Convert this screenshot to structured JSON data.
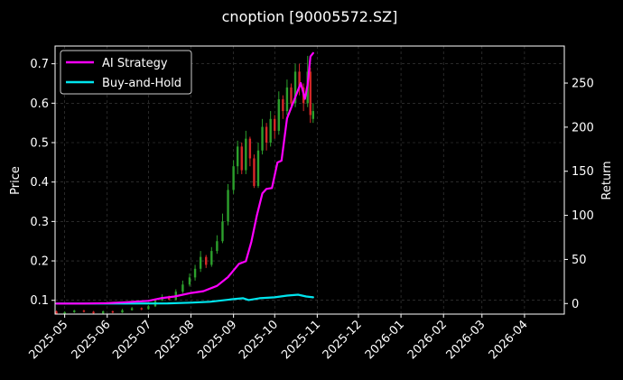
{
  "chart_data": {
    "type": "line",
    "title": "cnoption [90005572.SZ]",
    "xlabel": "",
    "ylabel_left": "Price",
    "ylabel_right": "Return",
    "background": "#000000",
    "grid": true,
    "legend_position": "top-left",
    "x_ticks": [
      "2025-05",
      "2025-06",
      "2025-07",
      "2025-08",
      "2025-09",
      "2025-10",
      "2025-11",
      "2025-12",
      "2026-01",
      "2026-02",
      "2026-03",
      "2026-04"
    ],
    "x_range": [
      "2025-04-24",
      "2026-04-30"
    ],
    "ylim_left": [
      0.065,
      0.745
    ],
    "ylim_right": [
      -12,
      292
    ],
    "yticks_left": [
      "0.1",
      "0.2",
      "0.3",
      "0.4",
      "0.5",
      "0.6",
      "0.7"
    ],
    "yticks_right": [
      "0",
      "50",
      "100",
      "150",
      "200",
      "250"
    ],
    "colors": {
      "up": "#2ca02c",
      "down": "#d62728",
      "ai": "#ff00ff",
      "bh": "#00e5ee",
      "grid": "#444444"
    },
    "series": [
      {
        "name": "AI Strategy",
        "axis": "right",
        "color": "#ff00ff",
        "points": [
          [
            "2025-04-25",
            0
          ],
          [
            "2025-05-15",
            0
          ],
          [
            "2025-06-01",
            0.5
          ],
          [
            "2025-06-15",
            1.5
          ],
          [
            "2025-07-01",
            3
          ],
          [
            "2025-07-10",
            6
          ],
          [
            "2025-07-20",
            8
          ],
          [
            "2025-08-01",
            12
          ],
          [
            "2025-08-10",
            14
          ],
          [
            "2025-08-20",
            20
          ],
          [
            "2025-08-28",
            30
          ],
          [
            "2025-09-05",
            45
          ],
          [
            "2025-09-10",
            48
          ],
          [
            "2025-09-14",
            70
          ],
          [
            "2025-09-18",
            100
          ],
          [
            "2025-09-22",
            125
          ],
          [
            "2025-09-25",
            130
          ],
          [
            "2025-09-29",
            131
          ],
          [
            "2025-10-03",
            160
          ],
          [
            "2025-10-06",
            162
          ],
          [
            "2025-10-10",
            210
          ],
          [
            "2025-10-15",
            230
          ],
          [
            "2025-10-20",
            250
          ],
          [
            "2025-10-23",
            232
          ],
          [
            "2025-10-25",
            248
          ],
          [
            "2025-10-27",
            280
          ],
          [
            "2025-10-29",
            284
          ]
        ]
      },
      {
        "name": "Buy-and-Hold",
        "axis": "right",
        "color": "#00e5ee",
        "points": [
          [
            "2025-04-25",
            0
          ],
          [
            "2025-06-15",
            0
          ],
          [
            "2025-07-15",
            0.2
          ],
          [
            "2025-08-01",
            1
          ],
          [
            "2025-08-15",
            2
          ],
          [
            "2025-09-01",
            5
          ],
          [
            "2025-09-08",
            6
          ],
          [
            "2025-09-12",
            4
          ],
          [
            "2025-09-20",
            6
          ],
          [
            "2025-10-01",
            7
          ],
          [
            "2025-10-10",
            9
          ],
          [
            "2025-10-18",
            10
          ],
          [
            "2025-10-24",
            8
          ],
          [
            "2025-10-29",
            7
          ]
        ]
      }
    ],
    "candles": [
      [
        "2025-04-25",
        0.072,
        0.066,
        0.074,
        0.064
      ],
      [
        "2025-05-01",
        0.066,
        0.07,
        0.072,
        0.064
      ],
      [
        "2025-05-08",
        0.07,
        0.074,
        0.076,
        0.068
      ],
      [
        "2025-05-15",
        0.074,
        0.071,
        0.076,
        0.069
      ],
      [
        "2025-05-22",
        0.071,
        0.067,
        0.073,
        0.066
      ],
      [
        "2025-05-29",
        0.067,
        0.072,
        0.074,
        0.066
      ],
      [
        "2025-06-05",
        0.072,
        0.069,
        0.074,
        0.067
      ],
      [
        "2025-06-12",
        0.069,
        0.075,
        0.078,
        0.068
      ],
      [
        "2025-06-19",
        0.075,
        0.08,
        0.083,
        0.074
      ],
      [
        "2025-06-26",
        0.08,
        0.077,
        0.082,
        0.075
      ],
      [
        "2025-07-01",
        0.078,
        0.085,
        0.088,
        0.076
      ],
      [
        "2025-07-06",
        0.085,
        0.1,
        0.105,
        0.083
      ],
      [
        "2025-07-11",
        0.1,
        0.108,
        0.115,
        0.098
      ],
      [
        "2025-07-16",
        0.108,
        0.102,
        0.112,
        0.1
      ],
      [
        "2025-07-21",
        0.102,
        0.122,
        0.128,
        0.1
      ],
      [
        "2025-07-26",
        0.122,
        0.14,
        0.15,
        0.118
      ],
      [
        "2025-07-31",
        0.14,
        0.158,
        0.168,
        0.135
      ],
      [
        "2025-08-04",
        0.158,
        0.18,
        0.19,
        0.15
      ],
      [
        "2025-08-08",
        0.18,
        0.21,
        0.225,
        0.172
      ],
      [
        "2025-08-12",
        0.21,
        0.19,
        0.215,
        0.182
      ],
      [
        "2025-08-16",
        0.19,
        0.225,
        0.235,
        0.185
      ],
      [
        "2025-08-20",
        0.225,
        0.25,
        0.265,
        0.218
      ],
      [
        "2025-08-24",
        0.25,
        0.3,
        0.32,
        0.245
      ],
      [
        "2025-08-28",
        0.3,
        0.38,
        0.395,
        0.29
      ],
      [
        "2025-09-01",
        0.38,
        0.44,
        0.455,
        0.37
      ],
      [
        "2025-09-04",
        0.44,
        0.49,
        0.505,
        0.42
      ],
      [
        "2025-09-07",
        0.49,
        0.43,
        0.5,
        0.42
      ],
      [
        "2025-09-10",
        0.43,
        0.51,
        0.53,
        0.42
      ],
      [
        "2025-09-13",
        0.51,
        0.46,
        0.515,
        0.44
      ],
      [
        "2025-09-16",
        0.46,
        0.39,
        0.47,
        0.385
      ],
      [
        "2025-09-19",
        0.39,
        0.48,
        0.5,
        0.385
      ],
      [
        "2025-09-22",
        0.48,
        0.54,
        0.56,
        0.47
      ],
      [
        "2025-09-25",
        0.54,
        0.5,
        0.55,
        0.48
      ],
      [
        "2025-09-28",
        0.5,
        0.56,
        0.58,
        0.49
      ],
      [
        "2025-10-01",
        0.56,
        0.53,
        0.57,
        0.51
      ],
      [
        "2025-10-04",
        0.53,
        0.61,
        0.63,
        0.52
      ],
      [
        "2025-10-07",
        0.61,
        0.58,
        0.62,
        0.56
      ],
      [
        "2025-10-10",
        0.58,
        0.64,
        0.66,
        0.57
      ],
      [
        "2025-10-13",
        0.64,
        0.6,
        0.65,
        0.585
      ],
      [
        "2025-10-16",
        0.6,
        0.68,
        0.7,
        0.59
      ],
      [
        "2025-10-19",
        0.68,
        0.64,
        0.7,
        0.62
      ],
      [
        "2025-10-22",
        0.64,
        0.6,
        0.65,
        0.58
      ],
      [
        "2025-10-25",
        0.6,
        0.68,
        0.72,
        0.59
      ],
      [
        "2025-10-27",
        0.68,
        0.57,
        0.69,
        0.55
      ],
      [
        "2025-10-29",
        0.56,
        0.58,
        0.6,
        0.55
      ]
    ]
  }
}
